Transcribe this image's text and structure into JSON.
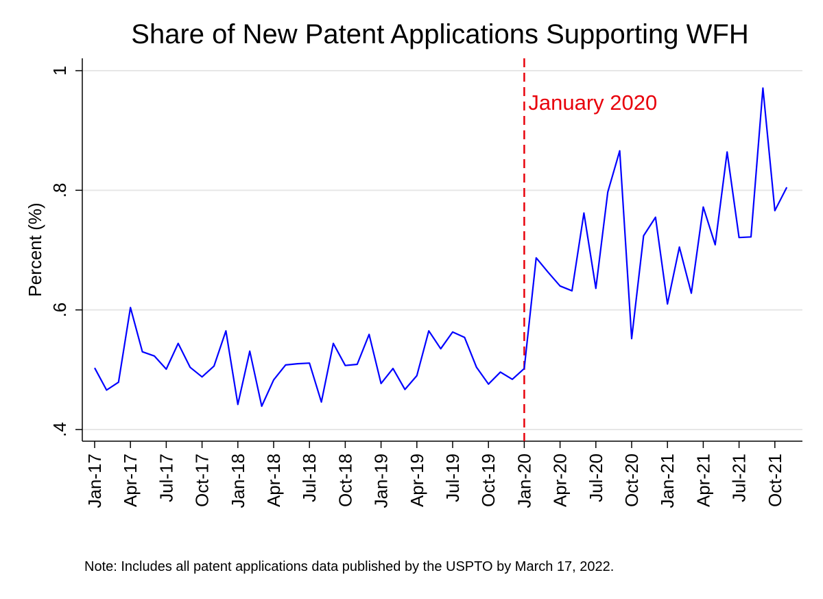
{
  "chart_data": {
    "type": "line",
    "title": "Share of New Patent Applications Supporting WFH",
    "xlabel": "",
    "ylabel": "Percent (%)",
    "ylim": [
      0.39,
      1.0
    ],
    "y_ticks": [
      0.4,
      0.6,
      0.8,
      1.0
    ],
    "y_tick_labels": [
      ".4",
      ".6",
      ".8",
      "1"
    ],
    "x_tick_labels": [
      "Jan-17",
      "Apr-17",
      "Jul-17",
      "Oct-17",
      "Jan-18",
      "Apr-18",
      "Jul-18",
      "Oct-18",
      "Jan-19",
      "Apr-19",
      "Jul-19",
      "Oct-19",
      "Jan-20",
      "Apr-20",
      "Jul-20",
      "Oct-20",
      "Jan-21",
      "Apr-21",
      "Jul-21",
      "Oct-21"
    ],
    "grid": true,
    "x_start": "Jan-17",
    "series": [
      {
        "color": "#0000ff",
        "values": [
          0.503,
          0.466,
          0.479,
          0.604,
          0.53,
          0.523,
          0.501,
          0.544,
          0.504,
          0.488,
          0.506,
          0.565,
          0.442,
          0.531,
          0.439,
          0.483,
          0.508,
          0.51,
          0.511,
          0.446,
          0.544,
          0.507,
          0.509,
          0.559,
          0.477,
          0.502,
          0.467,
          0.49,
          0.565,
          0.535,
          0.563,
          0.554,
          0.504,
          0.476,
          0.496,
          0.484,
          0.502,
          0.687,
          0.663,
          0.64,
          0.632,
          0.762,
          0.636,
          0.797,
          0.866,
          0.552,
          0.724,
          0.755,
          0.61,
          0.705,
          0.628,
          0.772,
          0.709,
          0.864,
          0.721,
          0.722,
          0.971,
          0.766,
          0.805
        ]
      }
    ],
    "annotations": [
      {
        "text": "January 2020",
        "x": "Jan-20",
        "color": "#e8000b",
        "style": "dashed-vertical-line"
      }
    ]
  },
  "note": "Note: Includes all patent applications data published by the USPTO by March 17, 2022."
}
